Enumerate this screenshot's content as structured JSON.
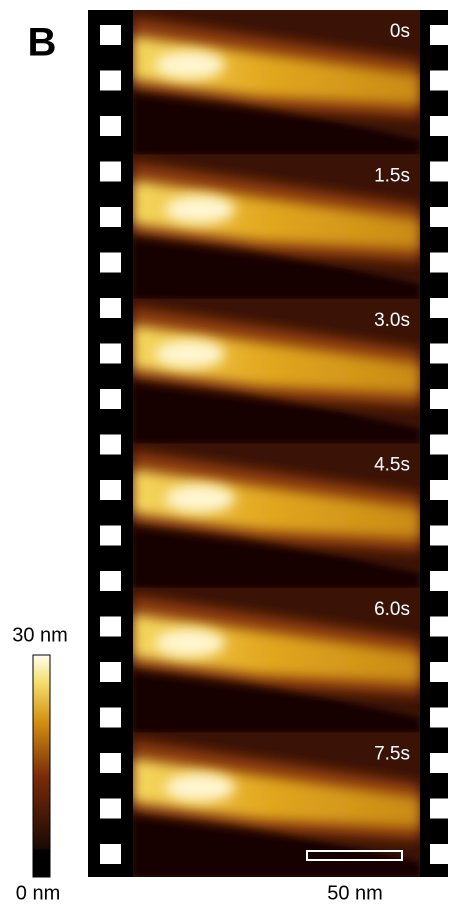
{
  "panel_label": "B",
  "frames": [
    {
      "time": "0s"
    },
    {
      "time": "1.5s"
    },
    {
      "time": "3.0s"
    },
    {
      "time": "4.5s"
    },
    {
      "time": "6.0s"
    },
    {
      "time": "7.5s"
    }
  ],
  "colorbar": {
    "max_label": "30 nm",
    "min_label": "0 nm"
  },
  "scale_bar": {
    "label": "50 nm"
  }
}
